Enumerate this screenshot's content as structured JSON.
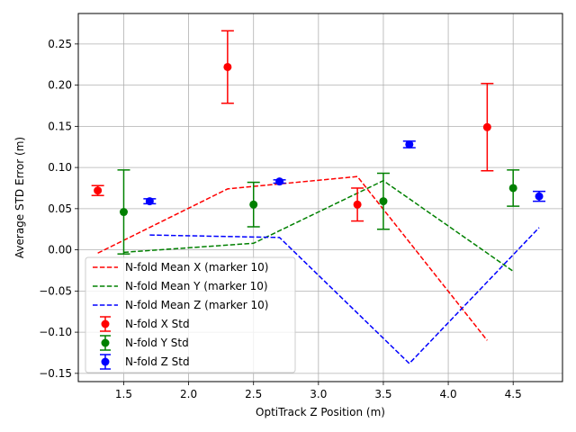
{
  "chart_data": {
    "type": "scatter",
    "title": "",
    "xlabel": "OptiTrack Z Position (m)",
    "ylabel": "Average STD Error (m)",
    "xlim": [
      1.15,
      4.88
    ],
    "ylim": [
      -0.16,
      0.287
    ],
    "x_ticks": [
      1.5,
      2.0,
      2.5,
      3.0,
      3.5,
      4.0,
      4.5
    ],
    "x_tick_labels": [
      "1.5",
      "2.0",
      "2.5",
      "3.0",
      "3.5",
      "4.0",
      "4.5"
    ],
    "y_ticks": [
      -0.15,
      -0.1,
      -0.05,
      0.0,
      0.05,
      0.1,
      0.15,
      0.2,
      0.25
    ],
    "y_tick_labels": [
      "−0.15",
      "−0.10",
      "−0.05",
      "0.00",
      "0.05",
      "0.10",
      "0.15",
      "0.20",
      "0.25"
    ],
    "grid": true,
    "legend_position": "lower-left",
    "lines": [
      {
        "name": "N-fold Mean X (marker 10)",
        "color": "#ff0000",
        "style": "dashed",
        "x": [
          1.3,
          2.3,
          3.3,
          4.3
        ],
        "y": [
          -0.004,
          0.074,
          0.089,
          -0.11
        ]
      },
      {
        "name": "N-fold Mean Y (marker 10)",
        "color": "#008000",
        "style": "dashed",
        "x": [
          1.5,
          2.5,
          3.5,
          4.5
        ],
        "y": [
          -0.003,
          0.008,
          0.084,
          -0.026
        ]
      },
      {
        "name": "N-fold Mean Z (marker 10)",
        "color": "#0000ff",
        "style": "dashed",
        "x": [
          1.7,
          2.7,
          3.7,
          4.7
        ],
        "y": [
          0.018,
          0.015,
          -0.138,
          0.027
        ]
      }
    ],
    "errorbars": [
      {
        "name": "N-fold X Std",
        "color": "#ff0000",
        "x": [
          1.3,
          2.3,
          3.3,
          4.3
        ],
        "y": [
          0.072,
          0.222,
          0.055,
          0.149
        ],
        "err": [
          0.006,
          0.044,
          0.02,
          0.053
        ]
      },
      {
        "name": "N-fold Y Std",
        "color": "#008000",
        "x": [
          1.5,
          2.5,
          3.5,
          4.5
        ],
        "y": [
          0.046,
          0.055,
          0.059,
          0.075
        ],
        "err": [
          0.051,
          0.027,
          0.034,
          0.022
        ]
      },
      {
        "name": "N-fold Z Std",
        "color": "#0000ff",
        "x": [
          1.7,
          2.7,
          3.7,
          4.7
        ],
        "y": [
          0.059,
          0.083,
          0.128,
          0.065
        ],
        "err": [
          0.003,
          0.002,
          0.004,
          0.006
        ]
      }
    ]
  }
}
